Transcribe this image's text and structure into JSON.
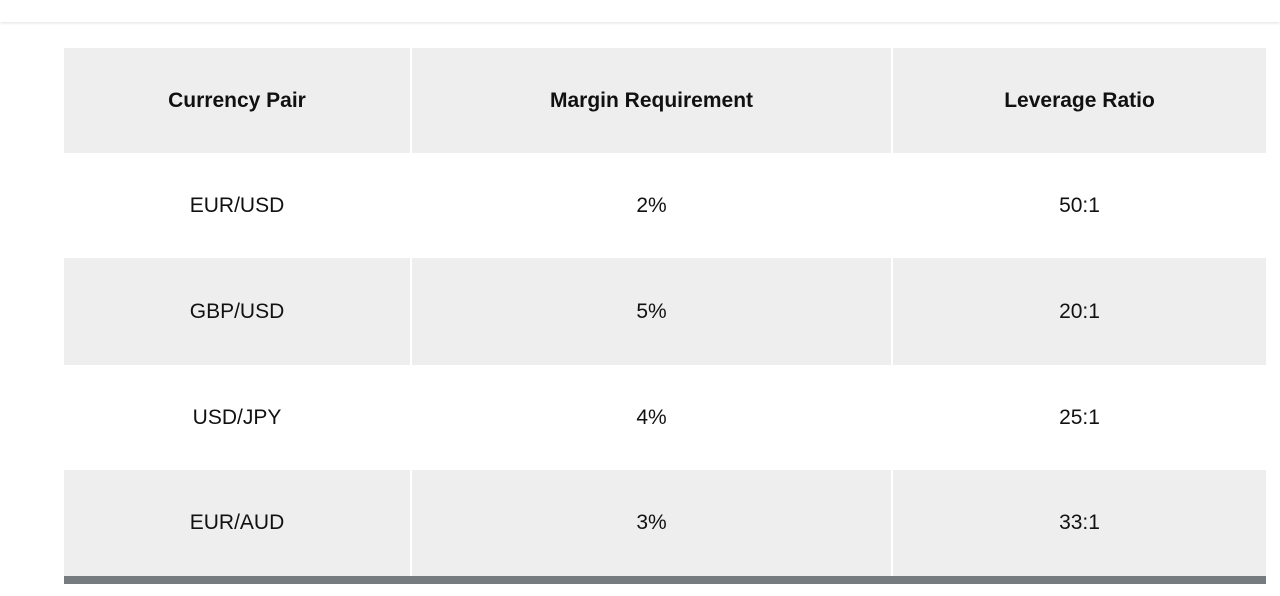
{
  "table": {
    "headers": [
      "Currency Pair",
      "Margin Requirement",
      "Leverage Ratio"
    ],
    "rows": [
      [
        "EUR/USD",
        "2%",
        "50:1"
      ],
      [
        "GBP/USD",
        "5%",
        "20:1"
      ],
      [
        "USD/JPY",
        "4%",
        "25:1"
      ],
      [
        "EUR/AUD",
        "3%",
        "33:1"
      ]
    ]
  }
}
